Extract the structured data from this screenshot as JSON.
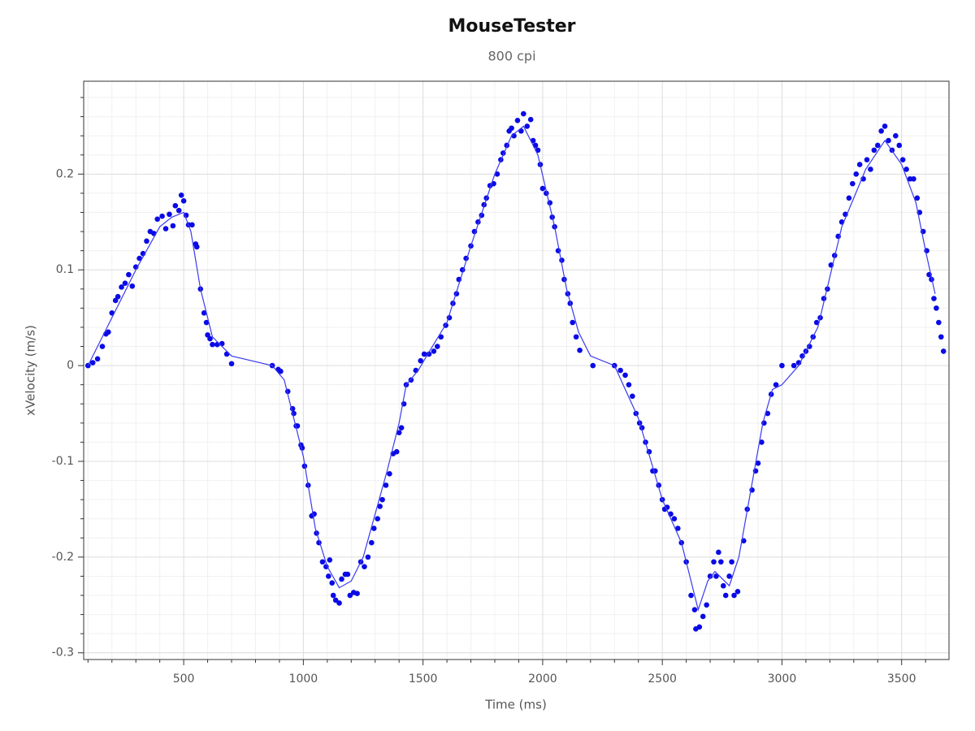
{
  "chart_data": {
    "type": "scatter",
    "title": "MouseTester",
    "subtitle": "800 cpi",
    "x_label": "Time (ms)",
    "y_label": "xVelocity (m/s)",
    "xlim": [
      82,
      3698
    ],
    "ylim": [
      -0.307,
      0.297
    ],
    "xticks": [
      500,
      1000,
      1500,
      2000,
      2500,
      3000,
      3500
    ],
    "yticks": [
      -0.3,
      -0.2,
      -0.1,
      0,
      0.1,
      0.2
    ],
    "minor_xticks": [
      100,
      200,
      300,
      400,
      600,
      700,
      800,
      900,
      1100,
      1200,
      1300,
      1400,
      1600,
      1700,
      1800,
      1900,
      2100,
      2200,
      2300,
      2400,
      2600,
      2700,
      2800,
      2900,
      3100,
      3200,
      3300,
      3400,
      3600
    ],
    "minor_yticks": [
      -0.28,
      -0.26,
      -0.24,
      -0.22,
      -0.18,
      -0.16,
      -0.14,
      -0.12,
      -0.08,
      -0.06,
      -0.04,
      -0.02,
      0.02,
      0.04,
      0.06,
      0.08,
      0.12,
      0.14,
      0.16,
      0.18,
      0.22,
      0.24,
      0.26,
      0.28
    ],
    "grid": true,
    "series": [
      {
        "type": "scatter",
        "color": "#0a0ae6",
        "x": [
          100,
          120,
          140,
          160,
          175,
          185,
          200,
          215,
          225,
          240,
          255,
          270,
          285,
          300,
          315,
          330,
          345,
          360,
          375,
          390,
          410,
          425,
          440,
          455,
          465,
          480,
          490,
          500,
          510,
          520,
          535,
          550,
          555,
          570,
          585,
          595,
          600,
          610,
          620,
          640,
          660,
          680,
          700,
          870,
          895,
          905,
          935,
          955,
          960,
          970,
          975,
          990,
          995,
          1005,
          1020,
          1035,
          1045,
          1055,
          1065,
          1080,
          1095,
          1105,
          1110,
          1120,
          1125,
          1135,
          1150,
          1160,
          1175,
          1185,
          1195,
          1210,
          1225,
          1240,
          1255,
          1270,
          1285,
          1295,
          1310,
          1320,
          1330,
          1345,
          1360,
          1375,
          1390,
          1400,
          1410,
          1420,
          1430,
          1450,
          1470,
          1490,
          1505,
          1525,
          1545,
          1560,
          1575,
          1595,
          1610,
          1625,
          1640,
          1650,
          1665,
          1680,
          1700,
          1715,
          1730,
          1745,
          1755,
          1765,
          1780,
          1795,
          1810,
          1825,
          1835,
          1850,
          1860,
          1870,
          1880,
          1895,
          1910,
          1920,
          1935,
          1950,
          1960,
          1970,
          1980,
          1990,
          2000,
          2015,
          2030,
          2040,
          2050,
          2065,
          2080,
          2090,
          2105,
          2115,
          2125,
          2140,
          2155,
          2210,
          2300,
          2325,
          2345,
          2360,
          2375,
          2390,
          2405,
          2415,
          2430,
          2445,
          2460,
          2470,
          2485,
          2500,
          2510,
          2520,
          2535,
          2550,
          2565,
          2580,
          2600,
          2620,
          2635,
          2640,
          2655,
          2670,
          2685,
          2700,
          2715,
          2725,
          2735,
          2745,
          2755,
          2765,
          2780,
          2790,
          2800,
          2815,
          2840,
          2855,
          2875,
          2890,
          2900,
          2915,
          2925,
          2940,
          2955,
          2975,
          3000,
          3050,
          3070,
          3085,
          3100,
          3115,
          3130,
          3145,
          3160,
          3175,
          3190,
          3205,
          3220,
          3235,
          3250,
          3265,
          3280,
          3295,
          3310,
          3325,
          3340,
          3355,
          3370,
          3385,
          3400,
          3415,
          3430,
          3445,
          3460,
          3475,
          3490,
          3505,
          3520,
          3535,
          3550,
          3565,
          3575,
          3590,
          3605,
          3615,
          3625,
          3635,
          3645,
          3655,
          3665,
          3675
        ],
        "values": [
          0,
          0.003,
          0.007,
          0.02,
          0.033,
          0.035,
          0.055,
          0.068,
          0.072,
          0.082,
          0.086,
          0.095,
          0.083,
          0.103,
          0.112,
          0.117,
          0.13,
          0.14,
          0.138,
          0.153,
          0.156,
          0.143,
          0.158,
          0.146,
          0.167,
          0.162,
          0.178,
          0.172,
          0.157,
          0.147,
          0.147,
          0.127,
          0.124,
          0.08,
          0.055,
          0.045,
          0.032,
          0.028,
          0.022,
          0.022,
          0.023,
          0.012,
          0.002,
          0,
          -0.004,
          -0.006,
          -0.027,
          -0.045,
          -0.05,
          -0.063,
          -0.063,
          -0.083,
          -0.086,
          -0.105,
          -0.125,
          -0.157,
          -0.155,
          -0.175,
          -0.185,
          -0.205,
          -0.21,
          -0.22,
          -0.203,
          -0.227,
          -0.24,
          -0.245,
          -0.248,
          -0.223,
          -0.218,
          -0.218,
          -0.24,
          -0.237,
          -0.238,
          -0.205,
          -0.21,
          -0.2,
          -0.185,
          -0.17,
          -0.16,
          -0.147,
          -0.14,
          -0.125,
          -0.113,
          -0.092,
          -0.09,
          -0.07,
          -0.065,
          -0.04,
          -0.02,
          -0.015,
          -0.005,
          0.005,
          0.012,
          0.012,
          0.015,
          0.02,
          0.03,
          0.042,
          0.05,
          0.065,
          0.075,
          0.09,
          0.1,
          0.112,
          0.125,
          0.14,
          0.15,
          0.157,
          0.168,
          0.175,
          0.188,
          0.19,
          0.2,
          0.215,
          0.222,
          0.23,
          0.245,
          0.248,
          0.24,
          0.256,
          0.245,
          0.263,
          0.25,
          0.257,
          0.235,
          0.23,
          0.225,
          0.21,
          0.185,
          0.18,
          0.17,
          0.155,
          0.145,
          0.12,
          0.11,
          0.09,
          0.075,
          0.065,
          0.045,
          0.03,
          0.016,
          0,
          0,
          -0.005,
          -0.01,
          -0.02,
          -0.032,
          -0.05,
          -0.06,
          -0.065,
          -0.08,
          -0.09,
          -0.11,
          -0.11,
          -0.125,
          -0.14,
          -0.15,
          -0.148,
          -0.155,
          -0.16,
          -0.17,
          -0.185,
          -0.205,
          -0.24,
          -0.255,
          -0.275,
          -0.273,
          -0.262,
          -0.25,
          -0.22,
          -0.205,
          -0.22,
          -0.195,
          -0.205,
          -0.23,
          -0.24,
          -0.22,
          -0.205,
          -0.24,
          -0.236,
          -0.183,
          -0.15,
          -0.13,
          -0.11,
          -0.102,
          -0.08,
          -0.06,
          -0.05,
          -0.03,
          -0.02,
          0,
          0,
          0.003,
          0.01,
          0.015,
          0.02,
          0.03,
          0.045,
          0.05,
          0.07,
          0.08,
          0.105,
          0.115,
          0.135,
          0.15,
          0.158,
          0.175,
          0.19,
          0.2,
          0.21,
          0.195,
          0.215,
          0.205,
          0.225,
          0.23,
          0.245,
          0.25,
          0.235,
          0.225,
          0.24,
          0.23,
          0.215,
          0.205,
          0.195,
          0.195,
          0.175,
          0.16,
          0.14,
          0.12,
          0.095,
          0.09,
          0.07,
          0.06,
          0.045,
          0.03,
          0.015
        ]
      },
      {
        "type": "line",
        "color": "#3a3af0",
        "x": [
          100,
          200,
          300,
          400,
          450,
          500,
          530,
          570,
          620,
          700,
          870,
          920,
          1000,
          1050,
          1100,
          1150,
          1200,
          1250,
          1300,
          1350,
          1400,
          1430,
          1480,
          1520,
          1600,
          1700,
          1800,
          1870,
          1920,
          1980,
          2050,
          2100,
          2150,
          2200,
          2300,
          2400,
          2500,
          2580,
          2620,
          2650,
          2690,
          2720,
          2760,
          2780,
          2820,
          2870,
          2920,
          2960,
          3000,
          3070,
          3150,
          3250,
          3350,
          3430,
          3500,
          3560,
          3600,
          3640
        ],
        "values": [
          0,
          0.05,
          0.1,
          0.145,
          0.155,
          0.16,
          0.14,
          0.08,
          0.03,
          0.01,
          0,
          -0.015,
          -0.095,
          -0.17,
          -0.21,
          -0.232,
          -0.225,
          -0.2,
          -0.155,
          -0.11,
          -0.06,
          -0.02,
          -0.005,
          0.012,
          0.045,
          0.125,
          0.2,
          0.24,
          0.25,
          0.22,
          0.145,
          0.08,
          0.035,
          0.01,
          0,
          -0.055,
          -0.14,
          -0.185,
          -0.225,
          -0.255,
          -0.225,
          -0.215,
          -0.225,
          -0.23,
          -0.2,
          -0.13,
          -0.06,
          -0.025,
          -0.02,
          0,
          0.04,
          0.145,
          0.205,
          0.235,
          0.21,
          0.17,
          0.12,
          0.075
        ]
      }
    ]
  }
}
